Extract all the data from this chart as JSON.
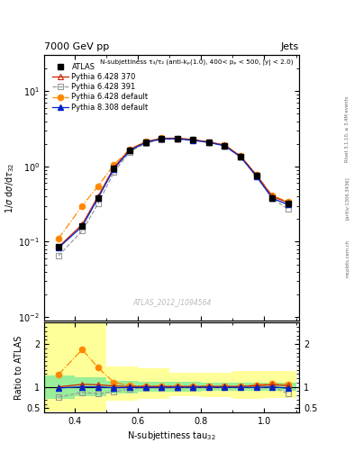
{
  "title_top": "7000 GeV pp",
  "title_right": "Jets",
  "annotation": "N-subjettiness τ₃/τ₂ (anti-kₚ(1.0), 400< pₚ < 500, |y| < 2.0)",
  "watermark": "ATLAS_2012_I1094564",
  "rivet_label": "Rivet 3.1.10, ≥ 3.4M events",
  "arxiv_label": "[arXiv:1306.3436]",
  "mcplots_label": "mcplots.cern.ch",
  "ylabel_main": "1/σ dσ/dτ₃₂",
  "ylabel_ratio": "Ratio to ATLAS",
  "xlabel": "N-subjettiness tau$_{32}$",
  "x_values": [
    0.35,
    0.425,
    0.475,
    0.525,
    0.575,
    0.625,
    0.675,
    0.725,
    0.775,
    0.825,
    0.875,
    0.925,
    0.975,
    1.025,
    1.075
  ],
  "atlas_y": [
    0.085,
    0.16,
    0.38,
    0.95,
    1.65,
    2.1,
    2.35,
    2.35,
    2.25,
    2.1,
    1.9,
    1.35,
    0.75,
    0.38,
    0.32
  ],
  "pythia6_370_y": [
    0.085,
    0.17,
    0.4,
    0.97,
    1.67,
    2.12,
    2.37,
    2.37,
    2.27,
    2.12,
    1.92,
    1.37,
    0.77,
    0.4,
    0.33
  ],
  "pythia6_391_y": [
    0.065,
    0.14,
    0.32,
    0.84,
    1.57,
    2.04,
    2.29,
    2.31,
    2.21,
    2.09,
    1.87,
    1.34,
    0.74,
    0.38,
    0.27
  ],
  "pythia6_def_y": [
    0.11,
    0.3,
    0.55,
    1.05,
    1.7,
    2.14,
    2.38,
    2.37,
    2.28,
    2.12,
    1.92,
    1.38,
    0.78,
    0.41,
    0.34
  ],
  "pythia8_def_y": [
    0.083,
    0.16,
    0.38,
    0.93,
    1.63,
    2.08,
    2.33,
    2.33,
    2.23,
    2.09,
    1.88,
    1.34,
    0.74,
    0.38,
    0.31
  ],
  "ratio_pythia6_370": [
    1.0,
    1.06,
    1.05,
    1.02,
    1.01,
    1.01,
    1.01,
    1.01,
    1.01,
    1.01,
    1.01,
    1.01,
    1.03,
    1.05,
    1.03
  ],
  "ratio_pythia6_391": [
    0.76,
    0.875,
    0.84,
    0.885,
    0.952,
    0.971,
    0.974,
    0.983,
    0.982,
    0.995,
    0.984,
    0.993,
    0.987,
    1.0,
    0.844
  ],
  "ratio_pythia6_def": [
    1.29,
    1.875,
    1.45,
    1.105,
    1.03,
    1.019,
    1.013,
    1.009,
    1.013,
    1.01,
    1.011,
    1.022,
    1.04,
    1.08,
    1.06
  ],
  "ratio_pythia8_def": [
    0.976,
    1.0,
    1.0,
    0.979,
    0.988,
    0.99,
    0.991,
    0.991,
    0.991,
    0.995,
    0.989,
    0.993,
    0.987,
    1.0,
    0.969
  ],
  "band_x_edges": [
    0.3,
    0.4,
    0.5,
    0.6,
    0.7,
    0.8,
    0.9,
    1.0,
    1.1
  ],
  "green_low": [
    0.73,
    0.78,
    0.85,
    0.88,
    0.89,
    0.9,
    0.9,
    0.9,
    0.9
  ],
  "green_high": [
    1.27,
    1.22,
    1.15,
    1.12,
    1.11,
    1.1,
    1.1,
    1.1,
    1.1
  ],
  "yellow_low": [
    0.42,
    0.42,
    0.67,
    0.72,
    0.79,
    0.77,
    0.73,
    0.74,
    0.72
  ],
  "yellow_high": [
    2.5,
    2.5,
    1.48,
    1.43,
    1.33,
    1.33,
    1.38,
    1.37,
    1.42
  ],
  "color_atlas": "#000000",
  "color_p6_370": "#cc2200",
  "color_p6_391": "#999999",
  "color_p6_def": "#ff8800",
  "color_p8_def": "#0022cc",
  "ylim_main": [
    0.009,
    30
  ],
  "ylim_ratio": [
    0.4,
    2.5
  ],
  "xlim": [
    0.305,
    1.11
  ]
}
